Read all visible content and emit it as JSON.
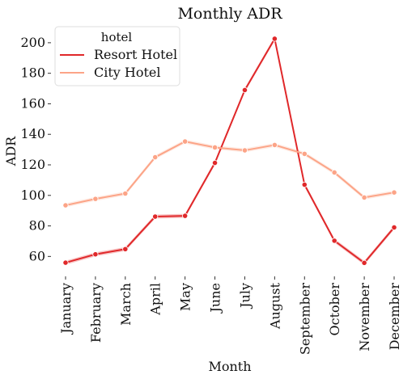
{
  "chart_data": {
    "type": "line",
    "title": "Monthly ADR",
    "xlabel": "Month",
    "ylabel": "ADR",
    "categories": [
      "January",
      "February",
      "March",
      "April",
      "May",
      "June",
      "July",
      "August",
      "September",
      "October",
      "November",
      "December"
    ],
    "ylim": [
      48,
      210
    ],
    "yticks": [
      60,
      80,
      100,
      120,
      140,
      160,
      180,
      200
    ],
    "grid": false,
    "legend": {
      "title": "hotel",
      "placement": "top-left"
    },
    "series": [
      {
        "name": "Resort Hotel",
        "color": "#e0282a",
        "band_color": "#f3a0a0",
        "values": [
          55.9,
          61.4,
          64.8,
          86.1,
          86.6,
          121.3,
          169.0,
          202.6,
          107.0,
          70.3,
          55.8,
          79.0
        ]
      },
      {
        "name": "City Hotel",
        "color": "#fca487",
        "band_color": "#fde0d3",
        "values": [
          93.5,
          97.7,
          101.2,
          125.0,
          135.3,
          131.4,
          129.5,
          133.0,
          127.2,
          115.0,
          98.6,
          101.9
        ]
      }
    ]
  }
}
